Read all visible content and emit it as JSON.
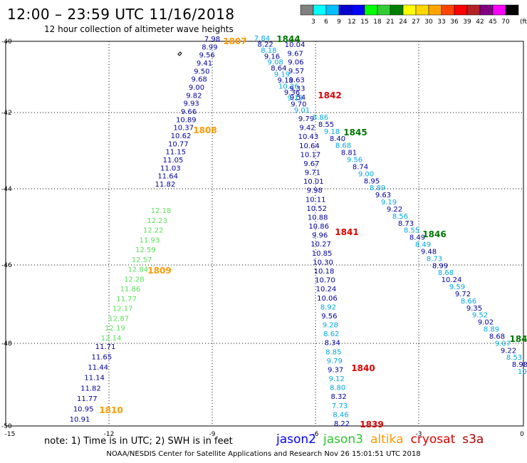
{
  "title": "12:00 – 23:59 UTC 11/16/2018",
  "subtitle": "12 hour collection of altimeter wave heights",
  "color_scale": {
    "ticks": [
      "3",
      "6",
      "9",
      "12",
      "15",
      "18",
      "21",
      "24",
      "27",
      "30",
      "33",
      "36",
      "39",
      "42",
      "45",
      "70"
    ],
    "unit": "(ft)",
    "colors": [
      "#808080",
      "#00ffff",
      "#00bfff",
      "#0000cd",
      "#0000ff",
      "#00ff00",
      "#32cd32",
      "#008000",
      "#ffff00",
      "#ffd700",
      "#ffa500",
      "#ff4500",
      "#ff0000",
      "#b22222",
      "#800080",
      "#ff00ff",
      "#000000"
    ]
  },
  "axes": {
    "x_ticks": [
      "-15",
      "-12",
      "-9",
      "-6",
      "-3",
      "0"
    ],
    "y_ticks": [
      "-40",
      "-42",
      "-44",
      "-46",
      "-48",
      "-50"
    ]
  },
  "note": "note: 1) Time is in UTC; 2) SWH is in feet",
  "legend": [
    {
      "name": "jason2",
      "color": "#0000ff"
    },
    {
      "name": "jason3",
      "color": "#2cc52c"
    },
    {
      "name": "altika",
      "color": "#ff9900"
    },
    {
      "name": "cryosat",
      "color": "#dd0000"
    },
    {
      "name": "s3a",
      "color": "#aa0000"
    }
  ],
  "footer": "NOAA/NESDIS Center for Satellite Applications and Research    Nov 26 15:01:51 UTC 2018",
  "colors": {
    "jason2": "#00009c",
    "jason3_light": "#5ae05a",
    "altika": "#ff9900",
    "cryosat": "#dd0000",
    "sat_green": "#007700",
    "cyan": "#00a8e0"
  },
  "tracks": [
    {
      "sat": "jason2",
      "color": "#00009c",
      "values": [
        "7.98",
        "8.99",
        "9.56",
        "9.41",
        "9.50",
        "9.68",
        "9.00",
        "9.82",
        "9.93",
        "9.66",
        "10.89",
        "10.37",
        "10.62",
        "10.77",
        "11.15",
        "11.05",
        "11.03",
        "11.64",
        "11.82"
      ]
    },
    {
      "sat": "jason3",
      "color": "#5ae05a",
      "values": [
        "12.18",
        "12.23",
        "12.22",
        "11.93",
        "12.59",
        "12.57",
        "12.84",
        "12.28",
        "11.86",
        "11.77",
        "12.17",
        "12.87",
        "12.19",
        "12.14"
      ]
    },
    {
      "sat": "jason2",
      "color": "#00009c",
      "values": [
        "11.71",
        "11.65",
        "11.44",
        "11.14",
        "11.82",
        "11.77",
        "10.95",
        "10.91"
      ]
    },
    {
      "sat": "cryosat_north",
      "color": "#00009c",
      "values": [
        "7.84",
        "8.22",
        "8.18",
        "9.16",
        "9.08",
        "8.64",
        "9.19",
        "9.18",
        "10.26",
        "9.36",
        "9.19",
        "9.70",
        "9.01"
      ]
    },
    {
      "sat": "track1844",
      "color": "#00009c",
      "values": [
        "10.04",
        "9.67",
        "9.06",
        "9.57",
        "9.63",
        "9.33",
        "9.54"
      ]
    },
    {
      "sat": "cryosat1841",
      "color": "#00009c",
      "values": [
        "9.79",
        "9.42",
        "10.43",
        "10.64",
        "10.17",
        "9.67",
        "9.71",
        "10.01",
        "9.98",
        "10.11",
        "10.52",
        "10.88",
        "10.86",
        "9.96",
        "10.27",
        "10.85",
        "10.30",
        "10.18",
        "10.70",
        "10.24",
        "10.06",
        "8.92",
        "9.56",
        "9.28",
        "8.62",
        "8.34",
        "8.85",
        "9.79",
        "9.37",
        "9.12",
        "8.80",
        "8.32",
        "7.73",
        "8.46",
        "8.22"
      ]
    },
    {
      "sat": "sat1845",
      "color": "#00009c",
      "values": [
        "8.86",
        "8.55",
        "9.18",
        "8.40",
        "8.68",
        "8.81",
        "9.56",
        "8.74",
        "9.00",
        "8.95",
        "8.89",
        "9.63",
        "9.19",
        "9.22",
        "8.56",
        "8.73",
        "8.55",
        "8.49",
        "8.49",
        "9.48",
        "8.73",
        "8.99",
        "8.68",
        "10.24",
        "9.59",
        "9.72",
        "8.66",
        "9.35",
        "9.52",
        "9.02",
        "8.89",
        "8.68",
        "9.07",
        "9.22",
        "8.53",
        "8.98",
        "10.2"
      ]
    }
  ],
  "pass_labels": [
    {
      "text": "1807",
      "color": "#ff9900"
    },
    {
      "text": "1844",
      "color": "#007700"
    },
    {
      "text": "1842",
      "color": "#dd0000"
    },
    {
      "text": "1808",
      "color": "#ff9900"
    },
    {
      "text": "1845",
      "color": "#007700"
    },
    {
      "text": "1841",
      "color": "#dd0000"
    },
    {
      "text": "1846",
      "color": "#007700"
    },
    {
      "text": "1809",
      "color": "#ff9900"
    },
    {
      "text": "184",
      "color": "#007700"
    },
    {
      "text": "1840",
      "color": "#dd0000"
    },
    {
      "text": "1810",
      "color": "#ff9900"
    },
    {
      "text": "1839",
      "color": "#dd0000"
    }
  ]
}
